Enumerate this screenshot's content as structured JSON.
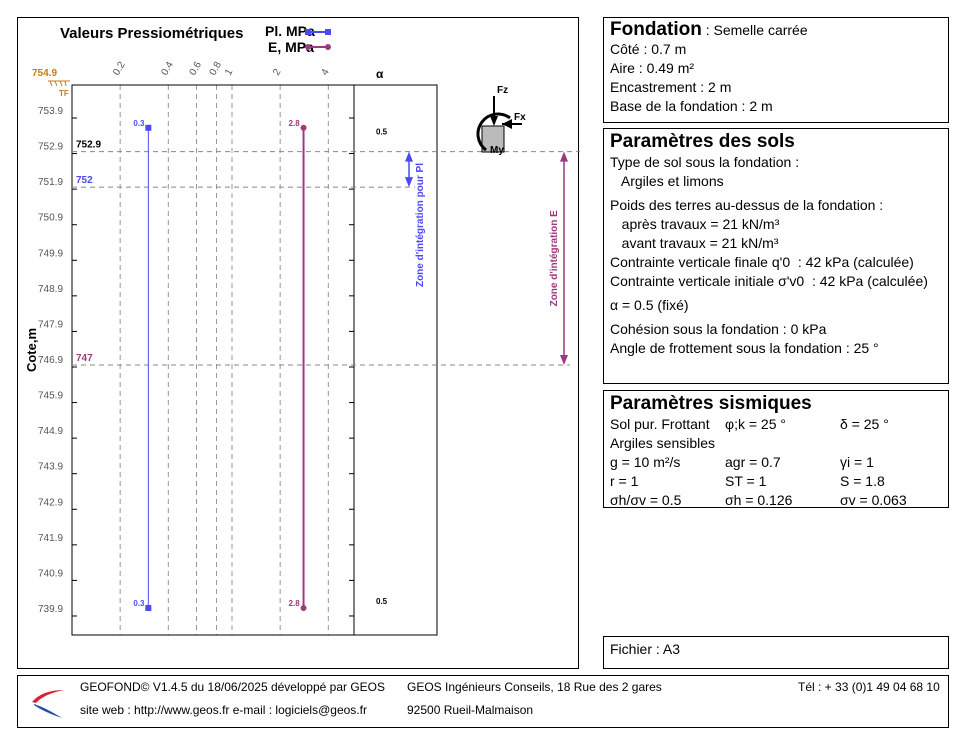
{
  "chart_data": {
    "type": "line",
    "title": "Valeurs Pressiométriques",
    "ylabel": "Cote,m",
    "legend": [
      {
        "name": "Pl. MPa",
        "color": "#4a4af5"
      },
      {
        "name": "E, MPa",
        "color": "#9b3a7e"
      }
    ],
    "xscale": "log",
    "xlim": [
      0.1,
      5.8
    ],
    "xticks": [
      0.2,
      0.4,
      0.6,
      0.8,
      1,
      2,
      4
    ],
    "xtick_labels": [
      "0.2",
      "0.4",
      "0.6",
      "0.8",
      "1",
      "2",
      "4"
    ],
    "ylim": [
      739.15,
      754.6
    ],
    "yticks": [
      753.9,
      752.9,
      751.9,
      750.9,
      749.9,
      748.9,
      747.9,
      746.9,
      745.9,
      744.9,
      743.9,
      742.9,
      741.9,
      740.9,
      739.9
    ],
    "ground_level": {
      "value": 754.9,
      "label": "754.9",
      "sub": "TF",
      "color": "#c87a14"
    },
    "series": [
      {
        "name": "Pl",
        "color": "#4a4af5",
        "marker": "square",
        "points": [
          {
            "z": 753.4,
            "v": 0.3
          },
          {
            "z": 739.9,
            "v": 0.3
          }
        ],
        "labels": [
          "0.3",
          "0.3"
        ]
      },
      {
        "name": "E",
        "color": "#9b3a7e",
        "marker": "circle",
        "points": [
          {
            "z": 753.4,
            "v": 2.8
          },
          {
            "z": 739.9,
            "v": 2.8
          }
        ],
        "labels": [
          "2.8",
          "2.8"
        ]
      }
    ],
    "alpha": {
      "header": "α",
      "values": [
        {
          "z": 753.3,
          "label": "0.5"
        },
        {
          "z": 740.1,
          "label": "0.5"
        }
      ]
    },
    "levels": [
      {
        "z": 752.9,
        "label": "752.9",
        "color": "#000"
      },
      {
        "z": 751.9,
        "label": "752",
        "color": "#4a4af5"
      },
      {
        "z": 746.9,
        "label": "747",
        "color": "#9b3a7e"
      }
    ],
    "zones": [
      {
        "label": "Zone d'intégration pour Pl",
        "from": 752.9,
        "to": 751.9,
        "color": "#4a4af5"
      },
      {
        "label": "Zone d'intégration E",
        "from": 752.9,
        "to": 746.9,
        "color": "#9b3a7e"
      }
    ],
    "loads": [
      "Fz",
      "Fx",
      "My"
    ]
  },
  "fondation": {
    "title": "Fondation",
    "type": " : Semelle carrée",
    "lines": [
      "Côté : 0.7 m",
      "Aire : 0.49 m²",
      "Encastrement : 2 m",
      "Base de la fondation : 2 m"
    ]
  },
  "sols": {
    "title": "Paramètres des sols",
    "lines": [
      "Type de sol sous la fondation :",
      "   Argiles et limons",
      "Poids des terres au-dessus de la fondation :",
      "   après travaux = 21 kN/m³",
      "   avant travaux = 21 kN/m³",
      "Contrainte verticale finale q'0  : 42 kPa (calculée)",
      "Contrainte verticale initiale σ'v0  : 42 kPa (calculée)",
      "α = 0.5 (fixé)",
      "Cohésion sous la fondation : 0 kPa",
      "Angle de frottement sous la fondation : 25 °"
    ]
  },
  "sismiques": {
    "title": "Paramètres sismiques",
    "rows": [
      [
        "Sol pur. Frottant",
        "φ;k = 25 °",
        "δ = 25 °"
      ],
      [
        "Argiles sensibles",
        "",
        ""
      ],
      [
        "g = 10 m²/s",
        "agr = 0.7",
        "γi = 1"
      ],
      [
        "r = 1",
        "ST = 1",
        "S = 1.8"
      ],
      [
        "σh/σv = 0.5",
        "σh = 0.126",
        "σv = 0.063"
      ]
    ]
  },
  "fichier": "Fichier : A3",
  "footer": {
    "l1": "GEOFOND© V1.4.5 du 18/06/2025 développé par GEOS",
    "l2": "site web : http://www.geos.fr e-mail : logiciels@geos.fr",
    "m1": "GEOS Ingénieurs Conseils, 18 Rue des 2 gares",
    "m2": "92500 Rueil-Malmaison",
    "r1": "Tél : + 33 (0)1 49 04 68 10"
  }
}
